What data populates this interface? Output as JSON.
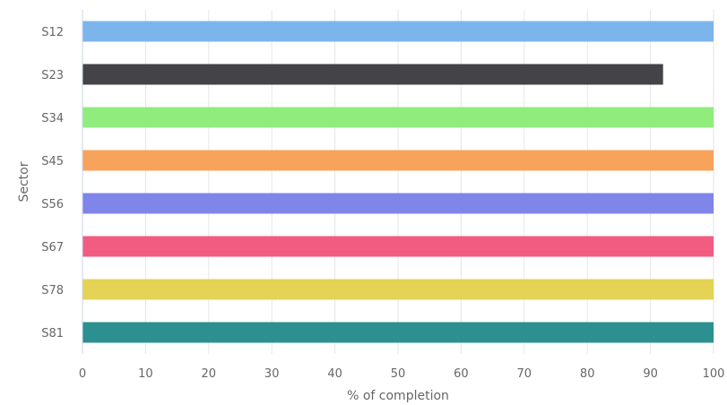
{
  "chart_data": {
    "type": "bar",
    "orientation": "horizontal",
    "title": "",
    "xlabel": "% of completion",
    "ylabel": "Sector",
    "xlim": [
      0,
      100
    ],
    "xticks": [
      0,
      10,
      20,
      30,
      40,
      50,
      60,
      70,
      80,
      90,
      100
    ],
    "grid": true,
    "legend": "none",
    "categories": [
      "S12",
      "S23",
      "S34",
      "S45",
      "S56",
      "S67",
      "S78",
      "S81"
    ],
    "values": [
      100,
      92,
      100,
      100,
      100,
      100,
      100,
      100
    ],
    "colors": [
      "#7cb5ec",
      "#434348",
      "#90ed7d",
      "#f7a35c",
      "#8085e9",
      "#f15c80",
      "#e4d354",
      "#2b908f"
    ]
  }
}
